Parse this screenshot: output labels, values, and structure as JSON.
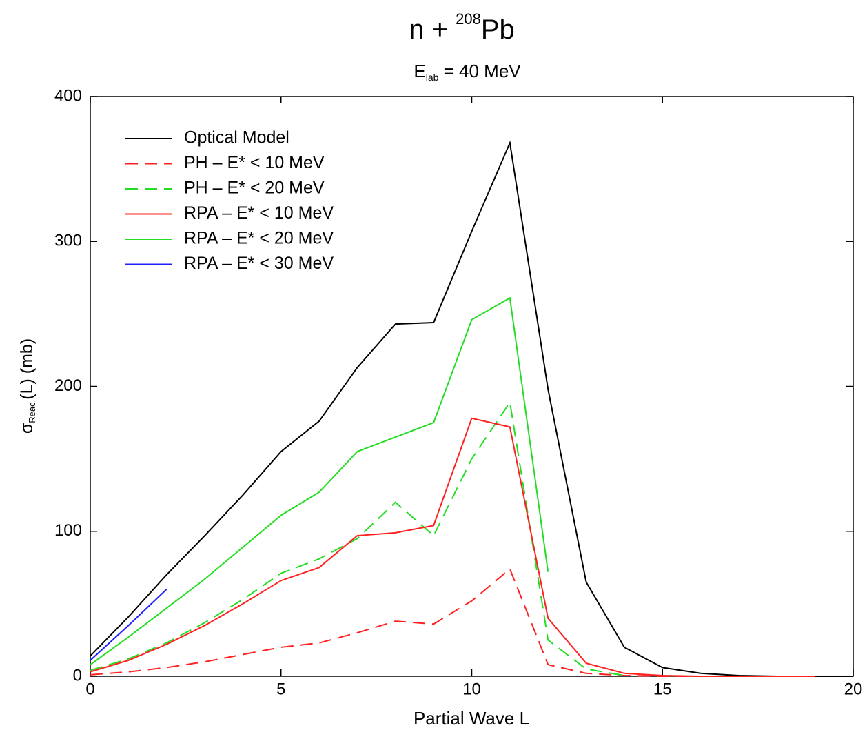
{
  "chart_data": {
    "type": "line",
    "title": {
      "prefix": "n + ",
      "superscript": "208",
      "element": "Pb"
    },
    "subtitle": {
      "main": "E",
      "subscript": "lab",
      "rest": " = 40 MeV"
    },
    "x_label": "Partial Wave L",
    "y_label": {
      "main": "σ",
      "subscript": "Reac.",
      "rest": "(L) (mb)"
    },
    "x": [
      0,
      1,
      2,
      3,
      4,
      5,
      6,
      7,
      8,
      9,
      10,
      11,
      12,
      13,
      14,
      15,
      16,
      17,
      18,
      19,
      20
    ],
    "xlim": [
      0,
      20
    ],
    "xticks": [
      0,
      5,
      10,
      15,
      20
    ],
    "ylim": [
      0,
      400
    ],
    "yticks": [
      0,
      100,
      200,
      300,
      400
    ],
    "legend": "upper left",
    "series": [
      {
        "name": "Optical Model",
        "color": "#000000",
        "dash": false,
        "values": [
          14,
          41,
          70,
          97,
          125,
          155,
          176,
          213,
          243,
          244,
          307,
          368,
          198,
          65,
          20,
          6,
          2,
          0.5,
          0,
          0,
          0
        ]
      },
      {
        "name": "PH – E* < 10 MeV",
        "color": "#ff2020",
        "dash": true,
        "values": [
          1,
          3,
          6,
          10,
          15,
          20,
          23,
          30,
          38,
          36,
          52,
          74,
          8,
          2,
          0.5,
          0,
          0,
          0,
          0,
          0,
          null
        ]
      },
      {
        "name": "PH – E* < 20 MeV",
        "color": "#22dd22",
        "dash": true,
        "values": [
          4,
          12,
          23,
          37,
          53,
          71,
          81,
          95,
          120,
          97,
          150,
          189,
          25,
          5,
          0.5,
          null,
          null,
          null,
          null,
          null,
          null
        ]
      },
      {
        "name": "RPA – E* < 10 MeV",
        "color": "#ff2020",
        "dash": false,
        "values": [
          3,
          11,
          22,
          35,
          50,
          66,
          75,
          97,
          99,
          104,
          178,
          172,
          40,
          9,
          2,
          0.5,
          0,
          0,
          0,
          0,
          null
        ]
      },
      {
        "name": "RPA – E* < 20 MeV",
        "color": "#22dd22",
        "dash": false,
        "values": [
          8,
          27,
          47,
          67,
          89,
          111,
          127,
          155,
          165,
          175,
          246,
          261,
          72,
          null,
          null,
          null,
          null,
          null,
          null,
          null,
          null
        ]
      },
      {
        "name": "RPA – E* < 30 MeV",
        "color": "#2020ff",
        "dash": false,
        "values": [
          11,
          35,
          60,
          null,
          null,
          null,
          null,
          null,
          null,
          null,
          null,
          null,
          null,
          null,
          null,
          null,
          null,
          null,
          null,
          null,
          null
        ]
      }
    ]
  }
}
